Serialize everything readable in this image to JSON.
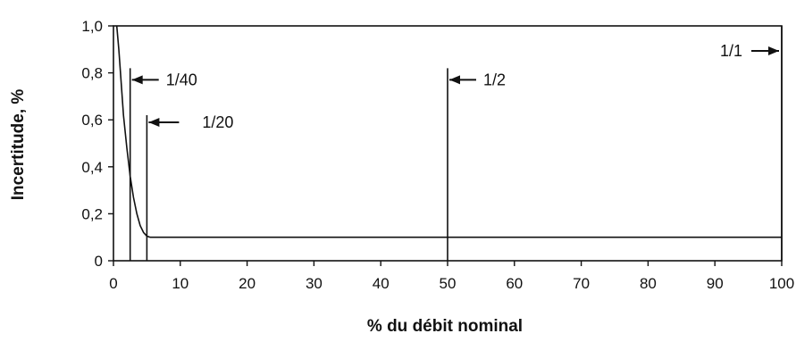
{
  "chart_data": {
    "type": "line",
    "xlabel": "% du débit nominal",
    "ylabel": "Incertitude, %",
    "xlim": [
      0,
      100
    ],
    "ylim": [
      0,
      1.0
    ],
    "x_ticks": [
      0,
      10,
      20,
      30,
      40,
      50,
      60,
      70,
      80,
      90,
      100
    ],
    "x_tick_labels": [
      "0",
      "10",
      "20",
      "30",
      "40",
      "50",
      "60",
      "70",
      "80",
      "90",
      "100"
    ],
    "y_ticks": [
      0,
      0.2,
      0.4,
      0.6,
      0.8,
      1.0
    ],
    "y_tick_labels": [
      "0",
      "0,2",
      "0,4",
      "0,6",
      "0,8",
      "1,0"
    ],
    "grid": false,
    "series": [
      {
        "x": [
          0.5,
          0.8,
          1.0,
          1.5,
          2.0,
          2.5,
          3.0,
          3.5,
          4.0,
          4.5,
          5.0,
          5.5,
          6,
          10,
          20,
          30,
          40,
          50,
          60,
          70,
          80,
          90,
          100
        ],
        "y": [
          1.0,
          0.9,
          0.82,
          0.62,
          0.48,
          0.36,
          0.27,
          0.2,
          0.15,
          0.12,
          0.105,
          0.1,
          0.1,
          0.1,
          0.1,
          0.1,
          0.1,
          0.1,
          0.1,
          0.1,
          0.1,
          0.1,
          0.1
        ]
      }
    ],
    "markers": [
      {
        "x": 2.5,
        "y_top": 0.82,
        "label": "1/40"
      },
      {
        "x": 5,
        "y_top": 0.62,
        "label": "1/20"
      },
      {
        "x": 50,
        "y_top": 0.82,
        "label": "1/2"
      },
      {
        "x": 100,
        "y_top": 1.0,
        "label": "1/1"
      }
    ]
  }
}
